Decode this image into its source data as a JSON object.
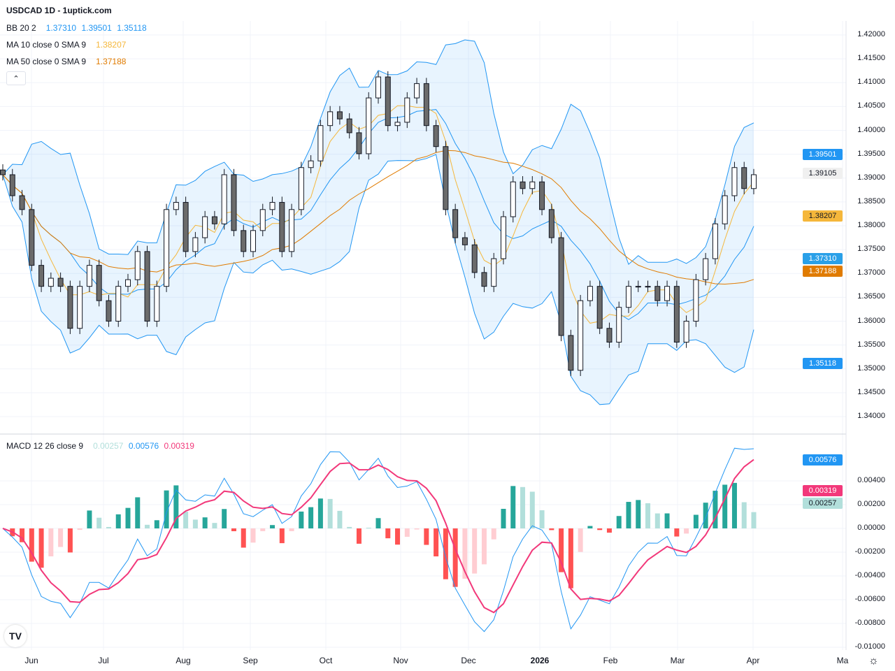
{
  "header": {
    "title": "USDCAD 1D - 1uptick.com"
  },
  "legend": {
    "bb": {
      "label": "BB 20 2",
      "basis": "1.37310",
      "upper": "1.39501",
      "lower": "1.35118"
    },
    "ma10": {
      "label": "MA 10 close 0 SMA 9",
      "value": "1.38207"
    },
    "ma50": {
      "label": "MA 50 close 0 SMA 9",
      "value": "1.37188"
    },
    "macd": {
      "label": "MACD 12 26 close 9",
      "hist": "0.00257",
      "macd": "0.00576",
      "signal": "0.00319"
    },
    "collapse_icon": "chevron-up"
  },
  "colors": {
    "bb": "#2196f3",
    "bb_fill": "rgba(33,150,243,0.10)",
    "ma10": "#f5b73b",
    "ma50": "#e07b00",
    "up": "#ffffff",
    "down": "#6b6b6b",
    "wick": "#131722",
    "macd": "#2196f3",
    "signal": "#f2387a",
    "hist_pos_up": "#26a69a",
    "hist_pos_down": "#b2dfdb",
    "hist_neg_down": "#ff5252",
    "hist_neg_up": "#ffcdd2"
  },
  "price_axis": {
    "ticks": [
      "1.42000",
      "1.41500",
      "1.41000",
      "1.40500",
      "1.40000",
      "1.39500",
      "1.39000",
      "1.38500",
      "1.38000",
      "1.37500",
      "1.37000",
      "1.36500",
      "1.36000",
      "1.35500",
      "1.35000",
      "1.34500",
      "1.34000"
    ]
  },
  "price_tags": {
    "bb_upper": "1.39501",
    "last": "1.39105",
    "ma10": "1.38207",
    "bb_basis": "1.37310",
    "ma50": "1.37188",
    "bb_lower": "1.35118"
  },
  "macd_axis": {
    "ticks": [
      "0.00400",
      "0.00200",
      "0.00000",
      "-0.00200",
      "-0.00400",
      "-0.00600",
      "-0.00800",
      "-0.01000"
    ]
  },
  "macd_tags": {
    "macd": "0.00576",
    "signal": "0.00319",
    "hist": "0.00257"
  },
  "time_axis": {
    "labels": [
      "Jun",
      "Jul",
      "Aug",
      "Sep",
      "Oct",
      "Nov",
      "Dec",
      "2026",
      "Feb",
      "Mar",
      "Apr",
      "Ma"
    ]
  },
  "icons": {
    "logo": "tradingview-logo",
    "logo_text": "TV",
    "settings": "gear-icon"
  },
  "chart_data": {
    "type": "candlestick",
    "symbol": "USDCAD",
    "interval": "1D",
    "ylim": [
      1.34,
      1.42
    ],
    "macd_ylim": [
      -0.01,
      0.005
    ],
    "closes": [
      1.3907,
      1.3863,
      1.3834,
      1.3717,
      1.3673,
      1.369,
      1.3673,
      1.3585,
      1.3673,
      1.3717,
      1.3643,
      1.36,
      1.3673,
      1.3687,
      1.3746,
      1.36,
      1.3673,
      1.3834,
      1.3849,
      1.3746,
      1.3775,
      1.3819,
      1.3804,
      1.3907,
      1.379,
      1.3746,
      1.379,
      1.3834,
      1.3849,
      1.3746,
      1.3834,
      1.3922,
      1.3936,
      1.401,
      1.4039,
      1.4024,
      1.3995,
      1.3951,
      1.4068,
      1.4112,
      1.401,
      1.4017,
      1.4068,
      1.4098,
      1.401,
      1.3966,
      1.3834,
      1.3775,
      1.376,
      1.3702,
      1.3673,
      1.3731,
      1.3819,
      1.3892,
      1.3878,
      1.3892,
      1.3834,
      1.3775,
      1.357,
      1.3497,
      1.3643,
      1.3673,
      1.3585,
      1.3556,
      1.3629,
      1.3673,
      1.3673,
      1.3673,
      1.3643,
      1.3673,
      1.3556,
      1.36,
      1.3687,
      1.3731,
      1.3804,
      1.3863,
      1.3922,
      1.3878,
      1.3907
    ]
  }
}
